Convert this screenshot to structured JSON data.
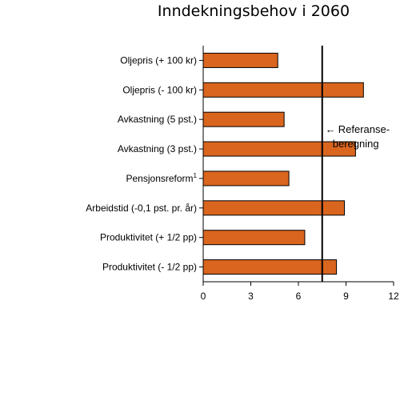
{
  "chart_data": {
    "type": "bar",
    "orientation": "horizontal",
    "title": "Inndekningsbehov i 2060",
    "categories": [
      "Oljepris (+ 100 kr)",
      "Oljepris (- 100 kr)",
      "Avkastning (5 pst.)",
      "Avkastning (3 pst.)",
      "Pensjonsreform",
      "Arbeidstid (-0,1 pst. pr. år)",
      "Produktivitet (+ 1/2 pp)",
      "Produktivitet (- 1/2 pp)"
    ],
    "category_superscripts": [
      "",
      "",
      "",
      "",
      "1",
      "",
      "",
      ""
    ],
    "values": [
      4.7,
      10.1,
      5.1,
      9.6,
      5.4,
      8.9,
      6.4,
      8.4
    ],
    "xlim": [
      0,
      12
    ],
    "xticks": [
      0,
      3,
      6,
      9,
      12
    ],
    "reference_line": {
      "x": 7.5,
      "label_line1": "Referanse-",
      "label_line2": "beregning",
      "arrow": "←"
    },
    "bar_color": "#D9651E",
    "bar_stroke": "#000000",
    "grid": false,
    "legend": "none",
    "xlabel": "",
    "ylabel": ""
  }
}
